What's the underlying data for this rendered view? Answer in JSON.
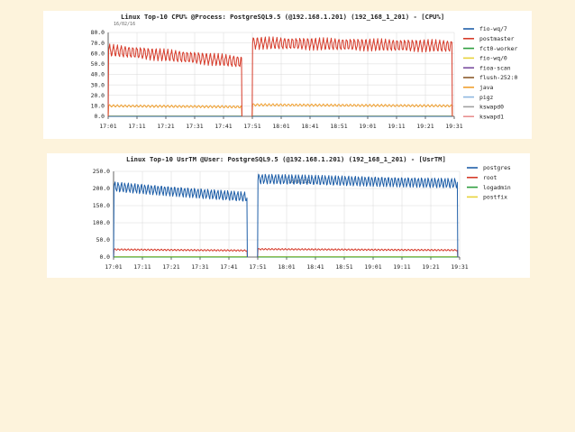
{
  "colors": {
    "page_background": "#fdf3dc",
    "panel_background": "#ffffff",
    "gridline": "#d8d8d8"
  },
  "chart_data": [
    {
      "type": "line",
      "title": "Linux Top-10 CPU% @Process: PostgreSQL9.5 (@192.168.1.201) (192_168_1_201) - [CPU%]",
      "date_label": "16/02/16",
      "ylim": [
        0,
        80
      ],
      "yticks": [
        "80.0",
        "70.0",
        "60.0",
        "50.0",
        "40.0",
        "30.0",
        "20.0",
        "10.0",
        "0.0"
      ],
      "x_range": [
        "17:01",
        "19:31"
      ],
      "xticks": [
        "17:01",
        "17:11",
        "17:21",
        "17:31",
        "17:41",
        "17:51",
        "18:01",
        "18:41",
        "18:51",
        "19:01",
        "19:11",
        "19:21",
        "19:31"
      ],
      "grid": true,
      "legend_position": "right",
      "series": [
        {
          "name": "fio-wq/7",
          "color": "#1f5fa8",
          "segments": [
            [
              17.02,
              17.98,
              0,
              0
            ],
            [
              18.06,
              19.5,
              0,
              0
            ]
          ]
        },
        {
          "name": "postmaster",
          "color": "#d63b2a",
          "segments": [
            [
              17.02,
              17.98,
              63,
              52
            ],
            [
              18.06,
              19.5,
              70,
              67
            ]
          ],
          "oscillation": 5
        },
        {
          "name": "fct0-worker",
          "color": "#2e9e3e",
          "segments": [
            [
              17.02,
              17.98,
              0,
              0
            ],
            [
              18.06,
              19.5,
              0,
              0
            ]
          ]
        },
        {
          "name": "fio-wq/0",
          "color": "#e8d23a",
          "segments": [
            [
              17.02,
              17.98,
              0.4,
              0.4
            ],
            [
              18.06,
              19.5,
              0.4,
              0.4
            ]
          ]
        },
        {
          "name": "fioa-scan",
          "color": "#7b4fa0",
          "segments": [
            [
              17.02,
              17.98,
              0,
              0
            ],
            [
              18.06,
              19.5,
              0,
              0
            ]
          ]
        },
        {
          "name": "flush-252:0",
          "color": "#8b5a2b",
          "segments": [
            [
              17.02,
              17.98,
              0,
              0
            ],
            [
              18.06,
              19.5,
              0,
              0
            ]
          ]
        },
        {
          "name": "java",
          "color": "#f0a030",
          "segments": [
            [
              17.02,
              17.98,
              10,
              9
            ],
            [
              18.06,
              19.5,
              11,
              10
            ]
          ],
          "oscillation": 1
        },
        {
          "name": "pigz",
          "color": "#8fb8e0",
          "segments": [
            [
              17.02,
              17.98,
              0,
              0
            ],
            [
              18.06,
              19.5,
              0,
              0
            ]
          ]
        },
        {
          "name": "kswapd0",
          "color": "#a0a0a0",
          "segments": [
            [
              17.02,
              17.98,
              0,
              0
            ],
            [
              18.06,
              19.5,
              0,
              0
            ]
          ]
        },
        {
          "name": "kswapd1",
          "color": "#e89090",
          "segments": [
            [
              17.02,
              17.98,
              0,
              0
            ],
            [
              18.06,
              19.5,
              0,
              0
            ]
          ]
        }
      ]
    },
    {
      "type": "line",
      "title": "Linux Top-10 UsrTM @User: PostgreSQL9.5 (@192.168.1.201) (192_168_1_201) - [UsrTM]",
      "date_label": "16/02/16",
      "ylim": [
        0,
        250
      ],
      "yticks": [
        "250.0",
        "200.0",
        "150.0",
        "100.0",
        "50.0",
        "0.0"
      ],
      "x_range": [
        "17:01",
        "19:31"
      ],
      "xticks": [
        "17:01",
        "17:11",
        "17:21",
        "17:31",
        "17:41",
        "17:51",
        "18:01",
        "18:41",
        "18:51",
        "19:01",
        "19:11",
        "19:21",
        "19:31"
      ],
      "grid": true,
      "legend_position": "right",
      "series": [
        {
          "name": "postgres",
          "color": "#1f5fa8",
          "segments": [
            [
              17.02,
              17.98,
              205,
              175
            ],
            [
              18.06,
              19.5,
              228,
              215
            ]
          ],
          "oscillation": 13
        },
        {
          "name": "root",
          "color": "#d63b2a",
          "segments": [
            [
              17.02,
              17.98,
              22,
              19
            ],
            [
              18.06,
              19.5,
              23,
              20
            ]
          ],
          "oscillation": 2
        },
        {
          "name": "logadmin",
          "color": "#2e9e3e",
          "segments": [
            [
              17.02,
              17.98,
              0,
              0
            ],
            [
              18.06,
              19.5,
              0,
              0
            ]
          ]
        },
        {
          "name": "postfix",
          "color": "#e8d23a",
          "segments": [
            [
              17.02,
              17.98,
              1,
              1
            ],
            [
              18.06,
              19.5,
              1,
              1
            ]
          ]
        }
      ]
    }
  ]
}
